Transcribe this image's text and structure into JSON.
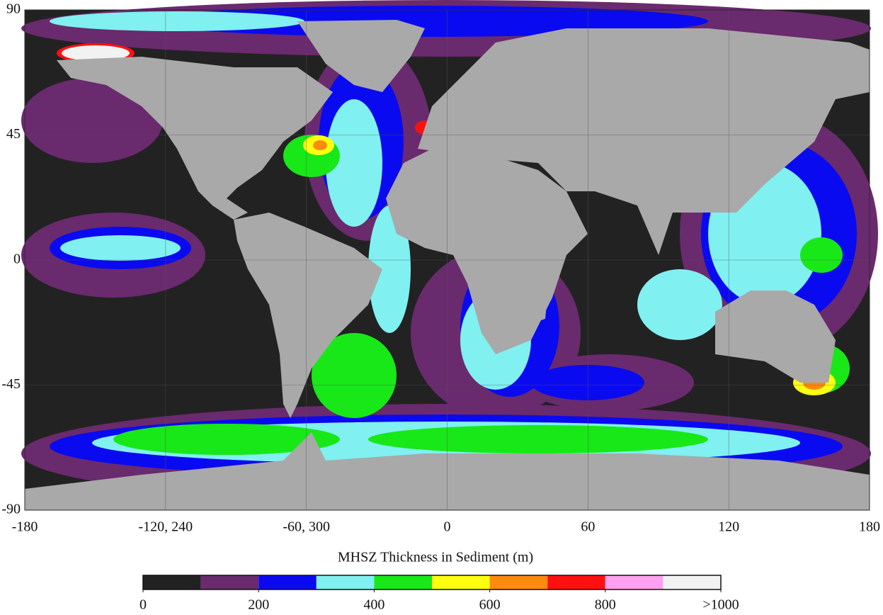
{
  "map": {
    "xlim": [
      -180,
      180
    ],
    "ylim": [
      -90,
      90
    ],
    "xticks": [
      -180,
      {
        "value": -120,
        "label": "-120, 240"
      },
      {
        "value": -60,
        "label": "-60, 300"
      },
      0,
      60,
      120,
      180
    ],
    "yticks": [
      90,
      45,
      0,
      -45,
      -90
    ],
    "grid": true
  },
  "colorbar": {
    "title": "MHSZ Thickness in Sediment (m)",
    "bins": [
      0,
      100,
      200,
      300,
      400,
      500,
      600,
      700,
      800,
      900,
      1000
    ],
    "colors": [
      "#222222",
      "#6a2a6e",
      "#0a0af0",
      "#80f0f0",
      "#18e818",
      "#ffff10",
      "#ff8a10",
      "#ff1010",
      "#ffa0f0",
      "#f2f2f2"
    ],
    "ticks": [
      0,
      200,
      400,
      600,
      800,
      {
        "value": 1000,
        "label": ">1000"
      }
    ]
  }
}
